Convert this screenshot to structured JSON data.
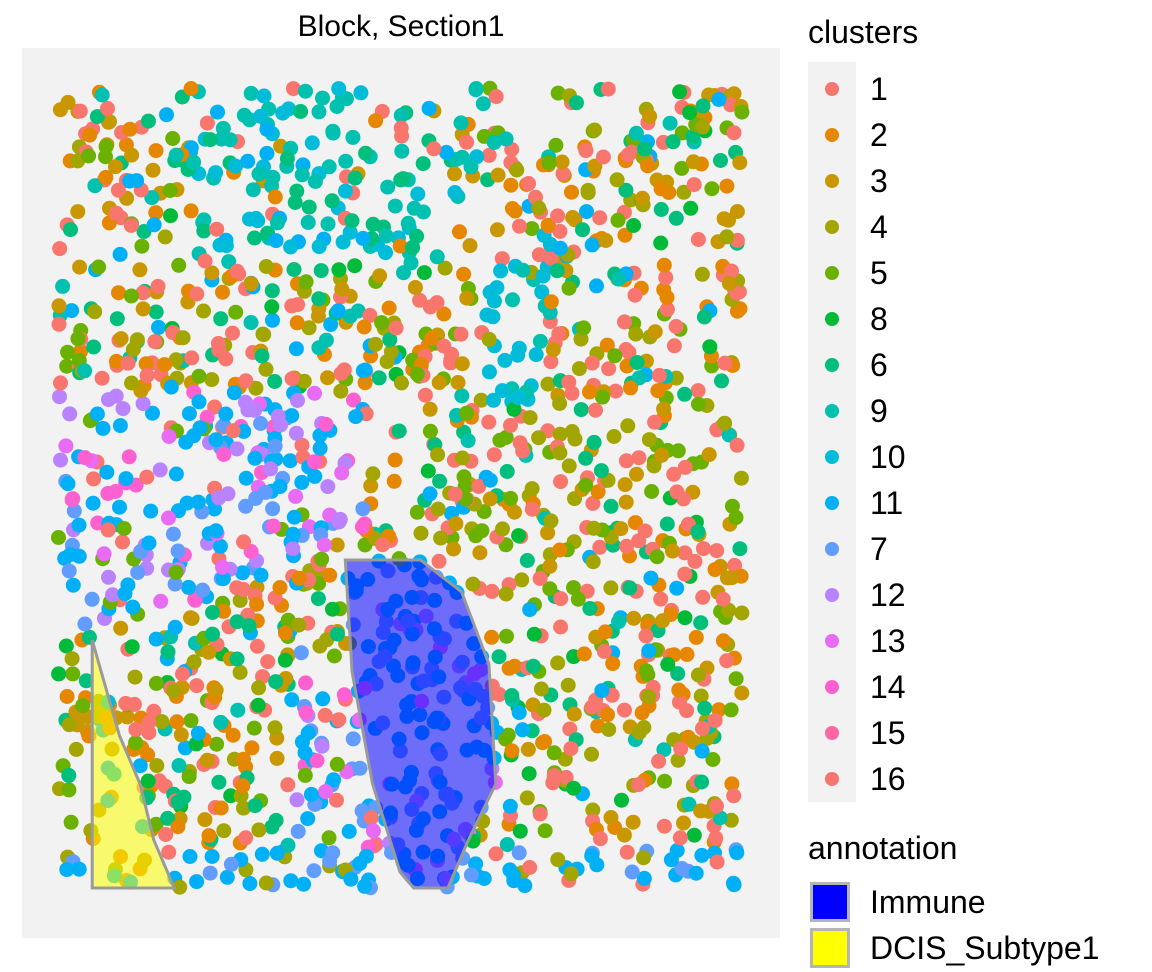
{
  "chart_data": {
    "type": "scatter",
    "title": "Block, Section1",
    "xlabel": "",
    "ylabel": "",
    "grid": false,
    "panel_background": "#f2f2f2",
    "legend_placement": "right",
    "clusters_legend": {
      "title": "clusters",
      "entries": [
        {
          "label": "1",
          "color": "#F8766D"
        },
        {
          "label": "2",
          "color": "#E58700"
        },
        {
          "label": "3",
          "color": "#C99800"
        },
        {
          "label": "4",
          "color": "#A3A500"
        },
        {
          "label": "5",
          "color": "#6BB100"
        },
        {
          "label": "8",
          "color": "#00BA38"
        },
        {
          "label": "6",
          "color": "#00BF7D"
        },
        {
          "label": "9",
          "color": "#00C0AF"
        },
        {
          "label": "10",
          "color": "#00BCD8"
        },
        {
          "label": "11",
          "color": "#00B0F6"
        },
        {
          "label": "7",
          "color": "#619CFF"
        },
        {
          "label": "12",
          "color": "#B983FF"
        },
        {
          "label": "13",
          "color": "#E76BF3"
        },
        {
          "label": "14",
          "color": "#FD61D1"
        },
        {
          "label": "15",
          "color": "#FF67A4"
        },
        {
          "label": "16",
          "color": "#F8766D"
        }
      ]
    },
    "annotation_legend": {
      "title": "annotation",
      "entries": [
        {
          "label": "Immune",
          "color": "#0000FF"
        },
        {
          "label": "DCIS_Subtype1",
          "color": "#FFFF00"
        }
      ]
    },
    "regions": [
      {
        "name": "Immune",
        "color": "#0000FF",
        "opacity": 0.55,
        "polygon": [
          [
            0.47,
            0.41
          ],
          [
            0.53,
            0.41
          ],
          [
            0.59,
            0.37
          ],
          [
            0.63,
            0.28
          ],
          [
            0.64,
            0.13
          ],
          [
            0.6,
            0.06
          ],
          [
            0.57,
            0.0
          ],
          [
            0.52,
            0.0
          ],
          [
            0.5,
            0.02
          ],
          [
            0.46,
            0.13
          ],
          [
            0.43,
            0.27
          ],
          [
            0.42,
            0.41
          ]
        ]
      },
      {
        "name": "DCIS_Subtype1",
        "color": "#FFFF00",
        "opacity": 0.55,
        "polygon": [
          [
            0.05,
            0.31
          ],
          [
            0.06,
            0.28
          ],
          [
            0.09,
            0.19
          ],
          [
            0.12,
            0.13
          ],
          [
            0.14,
            0.06
          ],
          [
            0.17,
            0.0
          ],
          [
            0.11,
            0.0
          ],
          [
            0.05,
            0.0
          ],
          [
            0.05,
            0.13
          ]
        ]
      }
    ],
    "point_count_approx": 1900
  }
}
